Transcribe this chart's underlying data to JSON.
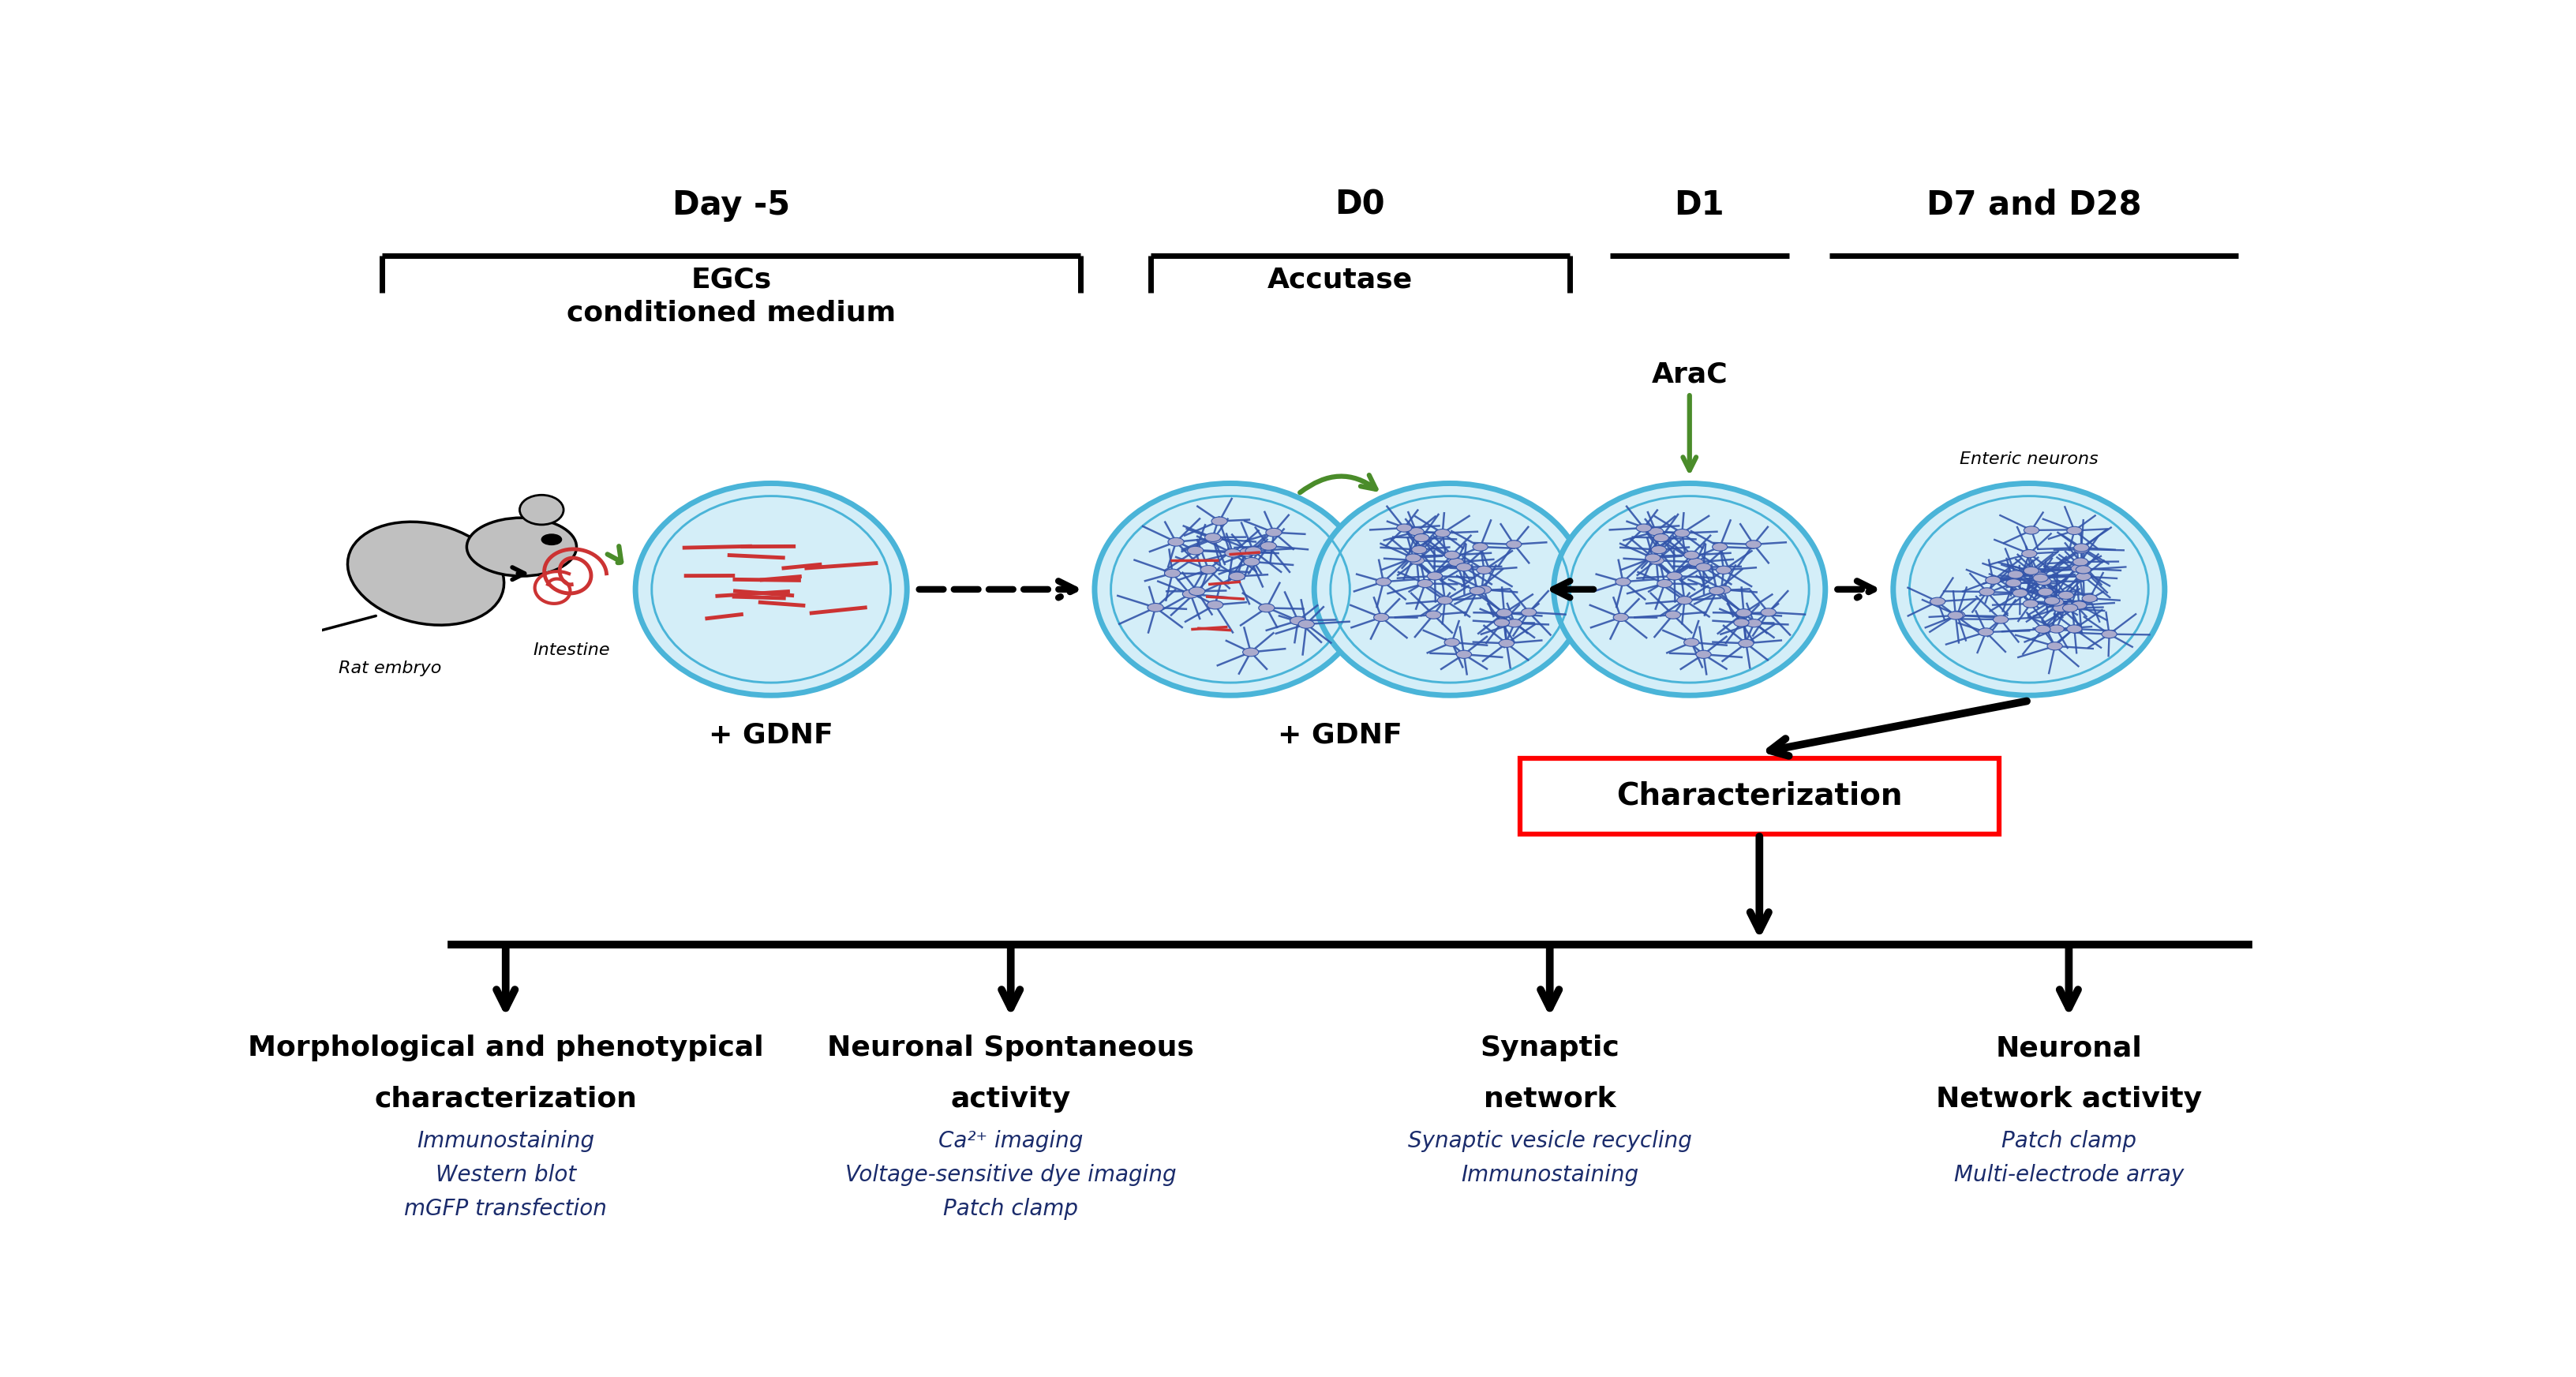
{
  "bg_color": "#ffffff",
  "day_labels": [
    "Day -5",
    "D0",
    "D1",
    "D7 and D28"
  ],
  "egc_text": "EGCs\nconditioned medium",
  "accutase_text": "Accutase",
  "arac_text": "AraC",
  "enteric_neurons_text": "Enteric neurons",
  "gdnf1_text": "+ GDNF",
  "gdnf2_text": "+ GDNF",
  "charact_text": "Characterization",
  "cat_labels_line1": [
    "Morphological and phenotypical",
    "Neuronal Spontaneous",
    "Synaptic",
    "Neuronal"
  ],
  "cat_labels_line2": [
    "characterization",
    "activity",
    "network",
    "Network activity"
  ],
  "sub_items": [
    [
      "Immunostaining",
      "Western blot",
      "mGFP transfection"
    ],
    [
      "Ca²⁺ imaging",
      "Voltage-sensitive dye imaging",
      "Patch clamp"
    ],
    [
      "Synaptic vesicle recycling",
      "Immunostaining"
    ],
    [
      "Patch clamp",
      "Multi-electrode array"
    ]
  ],
  "blue_color": "#1a2b6b",
  "green_color": "#4a8c2a",
  "red_color": "#cc0000",
  "black_color": "#000000",
  "dish_edge_color": "#4ab4d8",
  "dish_fill_color": "#d4eef8",
  "neuron_color": "#3355aa",
  "cell_color": "#cc3333",
  "rat_gray": "#888888",
  "rat_dark": "#555555"
}
